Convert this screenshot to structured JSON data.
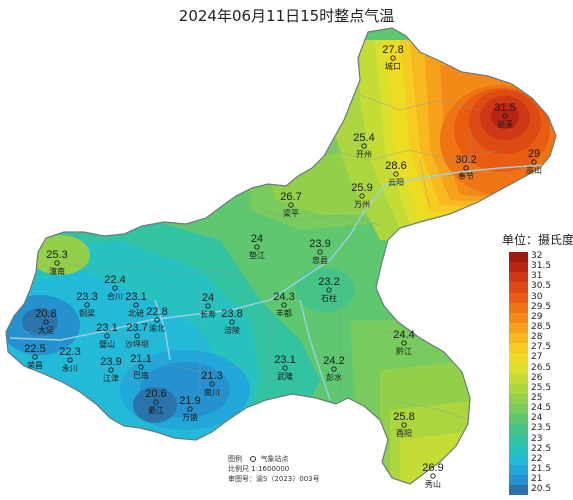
{
  "title": "2024年06月11日15时整点气温",
  "legend": {
    "unit_label": "单位：摄氏度",
    "levels": [
      {
        "label": "32",
        "color": "#9e1b0e"
      },
      {
        "label": "31.5",
        "color": "#b92511"
      },
      {
        "label": "31",
        "color": "#cf3816"
      },
      {
        "label": "30.5",
        "color": "#dd4a14"
      },
      {
        "label": "30",
        "color": "#e85d12"
      },
      {
        "label": "29.5",
        "color": "#ef7413"
      },
      {
        "label": "29",
        "color": "#f38a17"
      },
      {
        "label": "28.5",
        "color": "#f6a11c"
      },
      {
        "label": "28",
        "color": "#f8b820"
      },
      {
        "label": "27.5",
        "color": "#f7cc22"
      },
      {
        "label": "27",
        "color": "#eedc22"
      },
      {
        "label": "26.5",
        "color": "#dce02c"
      },
      {
        "label": "26",
        "color": "#c5dc36"
      },
      {
        "label": "25.5",
        "color": "#acd63f"
      },
      {
        "label": "25",
        "color": "#92d04b"
      },
      {
        "label": "24.5",
        "color": "#78cb5c"
      },
      {
        "label": "24",
        "color": "#5ec76f"
      },
      {
        "label": "23.5",
        "color": "#46c487"
      },
      {
        "label": "23",
        "color": "#33c2a2"
      },
      {
        "label": "22.5",
        "color": "#27c1c0"
      },
      {
        "label": "22",
        "color": "#22bad8"
      },
      {
        "label": "21.5",
        "color": "#22a7db"
      },
      {
        "label": "21",
        "color": "#2591cf"
      },
      {
        "label": "20.5",
        "color": "#2a73ab"
      }
    ]
  },
  "stations": [
    {
      "name": "城口",
      "temp": "27.8"
    },
    {
      "name": "巫溪",
      "temp": "31.5"
    },
    {
      "name": "开州",
      "temp": "25.4"
    },
    {
      "name": "云阳",
      "temp": "28.6"
    },
    {
      "name": "奉节",
      "temp": "30.2"
    },
    {
      "name": "巫山",
      "temp": "29"
    },
    {
      "name": "梁平",
      "temp": "26.7"
    },
    {
      "name": "万州",
      "temp": "25.9"
    },
    {
      "name": "垫江",
      "temp": "24"
    },
    {
      "name": "忠县",
      "temp": "23.9"
    },
    {
      "name": "潼南",
      "temp": "25.3"
    },
    {
      "name": "合川",
      "temp": "22.4"
    },
    {
      "name": "铜梁",
      "temp": "23.3"
    },
    {
      "name": "北碚",
      "temp": "23.1"
    },
    {
      "name": "渝北",
      "temp": "22.8"
    },
    {
      "name": "长寿",
      "temp": "24"
    },
    {
      "name": "涪陵",
      "temp": "23.8"
    },
    {
      "name": "丰都",
      "temp": "24.3"
    },
    {
      "name": "石柱",
      "temp": "23.2"
    },
    {
      "name": "大足",
      "temp": "20.8"
    },
    {
      "name": "璧山",
      "temp": "23.1"
    },
    {
      "name": "沙坪坝",
      "temp": "23.7"
    },
    {
      "name": "荣昌",
      "temp": "22.5"
    },
    {
      "name": "永川",
      "temp": "22.3"
    },
    {
      "name": "江津",
      "temp": "23.9"
    },
    {
      "name": "巴南",
      "temp": "21.1"
    },
    {
      "name": "南川",
      "temp": "21.3"
    },
    {
      "name": "綦江",
      "temp": "20.6"
    },
    {
      "name": "万盛",
      "temp": "21.9"
    },
    {
      "name": "武隆",
      "temp": "23.1"
    },
    {
      "name": "彭水",
      "temp": "24.2"
    },
    {
      "name": "黔江",
      "temp": "24.4"
    },
    {
      "name": "酉阳",
      "temp": "25.8"
    },
    {
      "name": "秀山",
      "temp": "26.9"
    }
  ],
  "footer": {
    "legend_label": "图例",
    "legend_item": "气象站点",
    "scale_label": "比例尺",
    "scale_value": "1:1600000",
    "approval_label": "审图号：",
    "approval_value": "渝S（2023）003号"
  }
}
